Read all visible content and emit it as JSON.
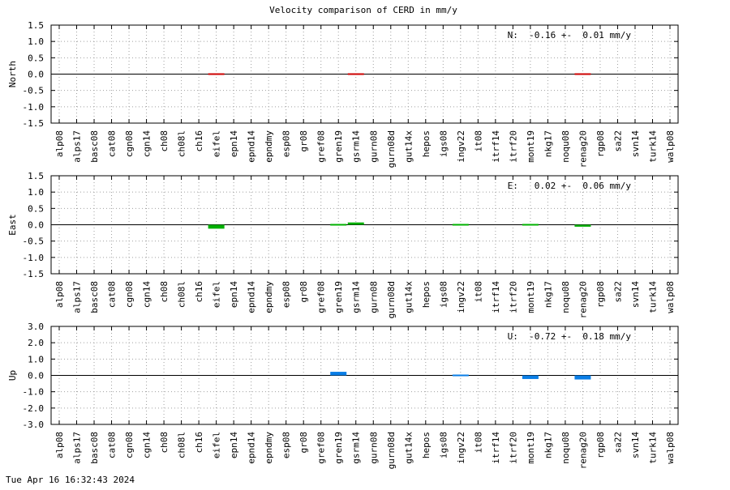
{
  "page": {
    "title": "Velocity comparison of CERD in mm/y",
    "timestamp": "Tue Apr 16 16:32:43 2024"
  },
  "colors": {
    "north": "#cc0000",
    "east": "#00b000",
    "up": "#0a7ee6",
    "grid": "#a0a0a0",
    "axis": "#000000"
  },
  "chart_data": [
    {
      "type": "bar",
      "ylabel": "North",
      "ylim": [
        -1.5,
        1.5
      ],
      "yticks": [
        "1.5",
        "1.0",
        "0.5",
        "0.0",
        "-0.5",
        "-1.0",
        "-1.5"
      ],
      "grid": true,
      "annotation": "N:  -0.16 +-  0.01 mm/y",
      "categories": [
        "alp08",
        "alps17",
        "basc08",
        "cat08",
        "cgn08",
        "cgn14",
        "ch08",
        "ch08l",
        "ch16",
        "eifel",
        "epn14",
        "epnd14",
        "epndmy",
        "esp08",
        "gr08",
        "gref08",
        "gren19",
        "gsrm14",
        "gurn08",
        "gurn08d",
        "gut14x",
        "hepos",
        "igs08",
        "ingv22",
        "it08",
        "itrf14",
        "itrf20",
        "mont19",
        "nkg17",
        "noqu08",
        "renag20",
        "rgp08",
        "sa22",
        "svn14",
        "turk14",
        "walp08"
      ],
      "values": [
        null,
        null,
        null,
        null,
        null,
        null,
        null,
        null,
        null,
        -0.04,
        null,
        null,
        null,
        null,
        null,
        null,
        null,
        -0.04,
        null,
        null,
        null,
        null,
        null,
        null,
        null,
        null,
        null,
        null,
        null,
        null,
        -0.04,
        null,
        null,
        null,
        null,
        null
      ],
      "color": "#cc0000"
    },
    {
      "type": "bar",
      "ylabel": "East",
      "ylim": [
        -1.5,
        1.5
      ],
      "yticks": [
        "1.5",
        "1.0",
        "0.5",
        "0.0",
        "-0.5",
        "-1.0",
        "-1.5"
      ],
      "grid": true,
      "annotation": "E:   0.02 +-  0.06 mm/y",
      "categories": [
        "alp08",
        "alps17",
        "basc08",
        "cat08",
        "cgn08",
        "cgn14",
        "ch08",
        "ch08l",
        "ch16",
        "eifel",
        "epn14",
        "epnd14",
        "epndmy",
        "esp08",
        "gr08",
        "gref08",
        "gren19",
        "gsrm14",
        "gurn08",
        "gurn08d",
        "gut14x",
        "hepos",
        "igs08",
        "ingv22",
        "it08",
        "itrf14",
        "itrf20",
        "mont19",
        "nkg17",
        "noqu08",
        "renag20",
        "rgp08",
        "sa22",
        "svn14",
        "turk14",
        "walp08"
      ],
      "values": [
        null,
        null,
        null,
        null,
        null,
        null,
        null,
        null,
        null,
        -0.12,
        null,
        null,
        null,
        null,
        null,
        null,
        0.02,
        0.07,
        null,
        null,
        null,
        null,
        null,
        0.02,
        null,
        null,
        null,
        0.02,
        null,
        null,
        -0.06,
        null,
        null,
        null,
        null,
        null
      ],
      "color": "#00b000"
    },
    {
      "type": "bar",
      "ylabel": "Up",
      "ylim": [
        -3.0,
        3.0
      ],
      "yticks": [
        "3.0",
        "2.0",
        "1.0",
        "0.0",
        "-1.0",
        "-2.0",
        "-3.0"
      ],
      "grid": true,
      "annotation": "U:  -0.72 +-  0.18 mm/y",
      "categories": [
        "alp08",
        "alps17",
        "basc08",
        "cat08",
        "cgn08",
        "cgn14",
        "ch08",
        "ch08l",
        "ch16",
        "eifel",
        "epn14",
        "epnd14",
        "epndmy",
        "esp08",
        "gr08",
        "gref08",
        "gren19",
        "gsrm14",
        "gurn08",
        "gurn08d",
        "gut14x",
        "hepos",
        "igs08",
        "ingv22",
        "it08",
        "itrf14",
        "itrf20",
        "mont19",
        "nkg17",
        "noqu08",
        "renag20",
        "rgp08",
        "sa22",
        "svn14",
        "turk14",
        "walp08"
      ],
      "values": [
        null,
        null,
        null,
        null,
        null,
        null,
        null,
        null,
        null,
        null,
        null,
        null,
        null,
        null,
        null,
        null,
        0.22,
        null,
        null,
        null,
        null,
        null,
        null,
        -0.05,
        null,
        null,
        null,
        -0.22,
        null,
        null,
        -0.25,
        null,
        null,
        null,
        null,
        null
      ],
      "color": "#0a7ee6"
    }
  ]
}
